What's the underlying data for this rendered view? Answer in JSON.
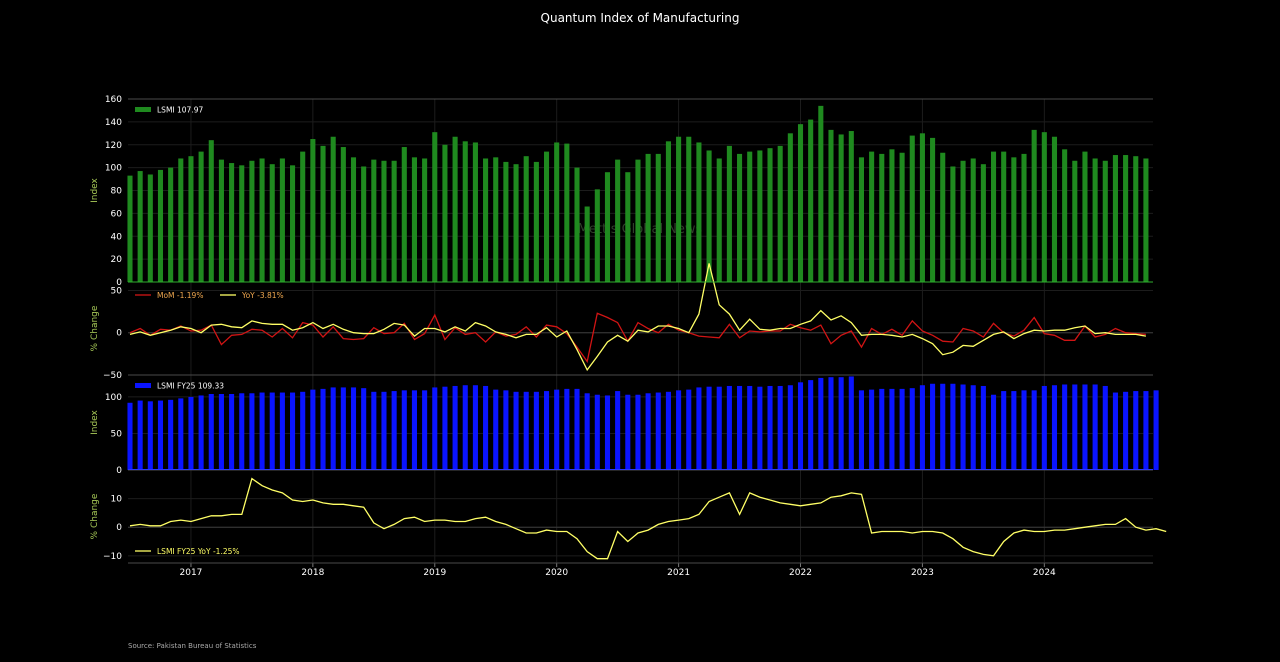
{
  "title": "Quantum Index of Manufacturing",
  "source": "Source: Pakistan Bureau of Statistics",
  "watermark": "Mettis Global News",
  "colors": {
    "background": "#000000",
    "lsmi_bar": "#1f8a1f",
    "mom_line": "#d11414",
    "yoy_line": "#ffff66",
    "fy25_bar": "#0a14ff",
    "axis_label": "#a7c957",
    "tick": "#ffffff",
    "grid": "#1c1c1c"
  },
  "chart_data": [
    {
      "type": "bar",
      "panel": "lsmi",
      "ylabel": "Index",
      "ylim": [
        0,
        160
      ],
      "yticks": [
        0,
        20,
        40,
        60,
        80,
        100,
        120,
        140,
        160
      ],
      "legend": "LSMI 107.97",
      "start_month": "2016-07",
      "values": [
        93,
        97,
        94,
        98,
        100,
        108,
        110,
        114,
        124,
        107,
        104,
        102,
        106,
        108,
        103,
        108,
        102,
        114,
        125,
        119,
        127,
        118,
        109,
        101,
        107,
        106,
        106,
        118,
        109,
        108,
        131,
        120,
        127,
        123,
        122,
        108,
        109,
        105,
        103,
        110,
        105,
        114,
        122,
        121,
        100,
        66,
        81,
        96,
        107,
        96,
        107,
        112,
        112,
        123,
        127,
        127,
        122,
        115,
        108,
        119,
        112,
        114,
        115,
        117,
        119,
        130,
        138,
        142,
        154,
        133,
        129,
        132,
        109,
        114,
        112,
        116,
        113,
        128,
        130,
        126,
        113,
        101,
        106,
        108,
        103,
        114,
        114,
        109,
        112,
        133,
        131,
        127,
        116,
        106,
        114,
        108,
        106,
        111,
        111,
        110,
        108
      ]
    },
    {
      "type": "line",
      "panel": "pct_change",
      "ylabel": "% Change",
      "ylim": [
        -50,
        60
      ],
      "yticks": [
        -50,
        0,
        50
      ],
      "start_month": "2016-07",
      "series": [
        {
          "name": "MoM -1.19%",
          "color": "#d11414",
          "values": [
            0,
            5,
            -3,
            4,
            3,
            8,
            2,
            3,
            9,
            -14,
            -3,
            -2,
            4,
            3,
            -5,
            5,
            -6,
            12,
            9,
            -5,
            7,
            -7,
            -8,
            -7,
            6,
            -1,
            0,
            11,
            -8,
            -1,
            21,
            -8,
            6,
            -2,
            0,
            -11,
            1,
            -4,
            -2,
            7,
            -5,
            9,
            7,
            -1,
            -17,
            -34,
            23,
            18,
            12,
            -10,
            12,
            5,
            0,
            10,
            3,
            0,
            -4,
            -5,
            -6,
            10,
            -6,
            2,
            1,
            2,
            2,
            10,
            6,
            3,
            9,
            -13,
            -3,
            2,
            -17,
            5,
            -2,
            4,
            -3,
            14,
            2,
            -3,
            -10,
            -11,
            5,
            2,
            -5,
            11,
            0,
            -4,
            3,
            18,
            -1,
            -3,
            -9,
            -9,
            8,
            -5,
            -2,
            5,
            0,
            -1,
            -2
          ]
        },
        {
          "name": "YoY -3.81%",
          "color": "#ffff66",
          "values": [
            -2,
            1,
            -3,
            0,
            3,
            7,
            5,
            0,
            9,
            10,
            7,
            6,
            14,
            11,
            10,
            10,
            3,
            6,
            12,
            5,
            10,
            4,
            0,
            -1,
            -1,
            4,
            11,
            9,
            -4,
            5,
            5,
            1,
            7,
            2,
            12,
            8,
            1,
            -2,
            -6,
            -2,
            -2,
            6,
            -5,
            2,
            -20,
            -44,
            -28,
            -11,
            -3,
            -10,
            3,
            1,
            8,
            8,
            5,
            0,
            22,
            82,
            33,
            22,
            3,
            16,
            4,
            3,
            5,
            5,
            10,
            14,
            26,
            15,
            20,
            12,
            -3,
            -2,
            -2,
            -3,
            -5,
            -2,
            -7,
            -13,
            -26,
            -23,
            -15,
            -16,
            -9,
            -2,
            1,
            -7,
            -1,
            3,
            2,
            3,
            3,
            6,
            8,
            -1,
            0,
            -2,
            -2,
            -2,
            -4
          ]
        }
      ]
    },
    {
      "type": "bar",
      "panel": "lsmi_fy25",
      "ylabel": "Index",
      "ylim": [
        0,
        130
      ],
      "yticks": [
        0,
        50,
        100
      ],
      "legend": "LSMI FY25 109.33",
      "start_month": "2016-07",
      "values": [
        92,
        95,
        94,
        95,
        96,
        98,
        100,
        102,
        104,
        104,
        104,
        105,
        105,
        106,
        106,
        106,
        106,
        107,
        110,
        111,
        113,
        113,
        113,
        112,
        107,
        107,
        108,
        109,
        109,
        109,
        113,
        114,
        115,
        116,
        116,
        115,
        110,
        109,
        107,
        107,
        107,
        108,
        110,
        111,
        111,
        105,
        103,
        102,
        108,
        103,
        103,
        105,
        106,
        107,
        109,
        110,
        113,
        114,
        114,
        115,
        115,
        115,
        114,
        115,
        115,
        116,
        120,
        123,
        126,
        127,
        127,
        128,
        109,
        110,
        111,
        111,
        111,
        112,
        116,
        118,
        118,
        118,
        117,
        116,
        115,
        103,
        108,
        108,
        109,
        109,
        115,
        116,
        117,
        117,
        117,
        117,
        115,
        106,
        107,
        108,
        108,
        109
      ]
    },
    {
      "type": "line",
      "panel": "fy25_yoy",
      "ylabel": "% Change",
      "ylim": [
        -12.5,
        20
      ],
      "yticks": [
        -10,
        0,
        10
      ],
      "start_month": "2016-07",
      "series": [
        {
          "name": "LSMI FY25 YoY -1.25%",
          "color": "#ffff66",
          "values": [
            0.5,
            1,
            0.5,
            0.5,
            2,
            2.5,
            2,
            3,
            4,
            4,
            4.5,
            4.5,
            17,
            14.5,
            13,
            12,
            9.5,
            9,
            9.5,
            8.5,
            8,
            8,
            7.5,
            7,
            1.5,
            -0.5,
            1,
            3,
            3.5,
            2,
            2.5,
            2.5,
            2,
            2,
            3,
            3.5,
            2,
            1,
            -0.5,
            -2,
            -2,
            -1,
            -1.5,
            -1.5,
            -4,
            -8.5,
            -11,
            -11,
            -1.5,
            -5,
            -2,
            -1,
            1,
            2,
            2.5,
            3,
            4.5,
            9,
            10.5,
            12,
            4.5,
            12,
            10.5,
            9.5,
            8.5,
            8,
            7.5,
            8,
            8.5,
            10.5,
            11,
            12,
            11.5,
            -2,
            -1.5,
            -1.5,
            -1.5,
            -2,
            -1.5,
            -1.5,
            -2,
            -4,
            -7,
            -8.5,
            -9.5,
            -10,
            -5,
            -2,
            -1,
            -1.5,
            -1.5,
            -1,
            -1,
            -0.5,
            0,
            0.5,
            1,
            1,
            3,
            0,
            -1,
            -0.5,
            -1.5
          ]
        }
      ]
    }
  ],
  "xaxis": {
    "ticks": [
      "2017",
      "2018",
      "2019",
      "2020",
      "2021",
      "2022",
      "2023",
      "2024"
    ],
    "tick_months": [
      "2017-01",
      "2018-01",
      "2019-01",
      "2020-01",
      "2021-01",
      "2022-01",
      "2023-01",
      "2024-01"
    ]
  }
}
